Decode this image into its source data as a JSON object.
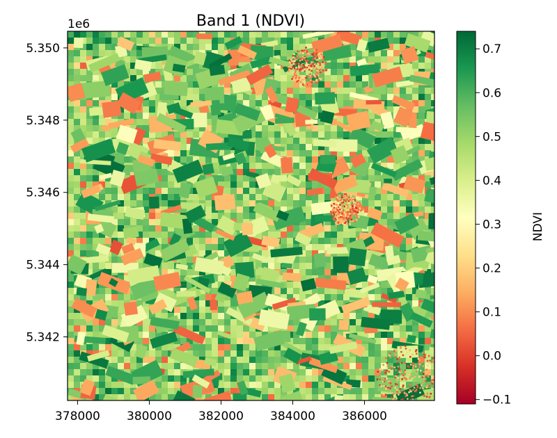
{
  "chart_data": {
    "type": "heatmap",
    "title": "Band 1 (NDVI)",
    "xlabel": "",
    "ylabel": "",
    "x_ticks": [
      "378000",
      "380000",
      "382000",
      "384000",
      "386000"
    ],
    "x_tick_values": [
      378000,
      380000,
      382000,
      384000,
      386000
    ],
    "xlim": [
      377720,
      387950
    ],
    "y_ticks": [
      "5.342",
      "5.344",
      "5.346",
      "5.348",
      "5.350"
    ],
    "y_tick_values": [
      5.342,
      5.344,
      5.346,
      5.348,
      5.35
    ],
    "ylim": [
      5.34024,
      5.35046
    ],
    "y_offset_text": "1e6",
    "colorbar": {
      "label": "NDVI",
      "colormap": "RdYlGn",
      "range": [
        -0.11,
        0.74
      ],
      "ticks": [
        "−0.1",
        "0.0",
        "0.1",
        "0.2",
        "0.3",
        "0.4",
        "0.5",
        "0.6",
        "0.7"
      ],
      "tick_values": [
        -0.1,
        0.0,
        0.1,
        0.2,
        0.3,
        0.4,
        0.5,
        0.6,
        0.7
      ],
      "colors": [
        "#a50026",
        "#d73027",
        "#f46d43",
        "#fdae61",
        "#fee08b",
        "#ffffbf",
        "#d9ef8b",
        "#a6d96a",
        "#66bd63",
        "#1a9850",
        "#006837"
      ]
    },
    "grid": false
  }
}
